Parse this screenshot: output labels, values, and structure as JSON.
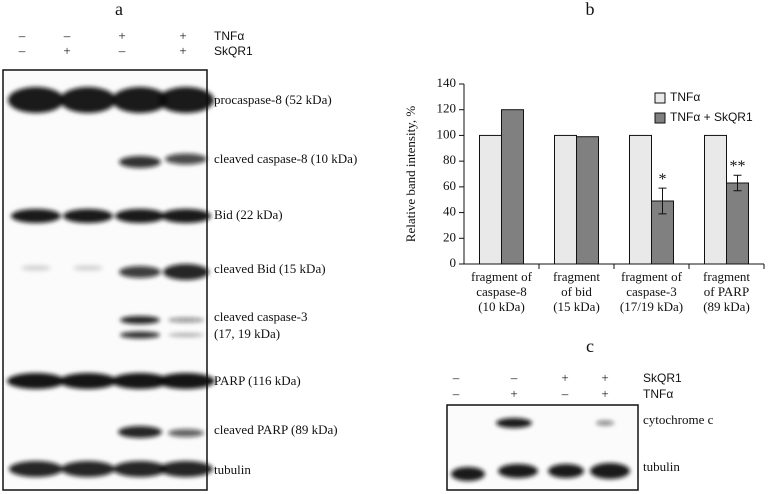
{
  "panel_a": {
    "title": "a",
    "treatments": [
      {
        "name": "TNFα",
        "signs": [
          "–",
          "–",
          "+",
          "+"
        ]
      },
      {
        "name": "SkQR1",
        "signs": [
          "–",
          "+",
          "–",
          "+"
        ]
      }
    ],
    "labels": [
      "procaspase-8 (52 kDa)",
      "cleaved caspase-8 (10 kDa)",
      "Bid (22 kDa)",
      "cleaved Bid (15 kDa)",
      "cleaved caspase-3",
      "(17, 19 kDa)",
      "PARP (116 kDa)",
      "cleaved PARP (89 kDa)",
      "tubulin"
    ]
  },
  "chart_data": {
    "type": "bar",
    "title": "b",
    "y_label": "Relative band intensity, %",
    "categories": [
      "fragment of\ncaspase-8\n(10 kDa)",
      "fragment\nof bid\n(15 kDa)",
      "fragment of\ncaspase-3\n(17/19 kDa)",
      "fragment\nof PARP\n(89 kDa)"
    ],
    "series": [
      {
        "name": "TNFα",
        "color": "#e9e9e9",
        "values": [
          100,
          100,
          100,
          100
        ]
      },
      {
        "name": "TNFα + SkQR1",
        "color": "#808080",
        "values": [
          120,
          99,
          49,
          63
        ],
        "errors": [
          null,
          null,
          10,
          6
        ]
      }
    ],
    "significance": [
      null,
      null,
      "*",
      "**"
    ],
    "ylim": [
      0,
      140
    ],
    "yticks": [
      0,
      20,
      40,
      60,
      80,
      100,
      120,
      140
    ],
    "legend": "top-right"
  },
  "panel_c": {
    "title": "c",
    "treatments": [
      {
        "name": "SkQR1",
        "signs": [
          "–",
          "–",
          "+",
          "+"
        ]
      },
      {
        "name": "TNFα",
        "signs": [
          "–",
          "+",
          "–",
          "+"
        ]
      }
    ],
    "labels": [
      "cytochrome c",
      "tubulin"
    ]
  }
}
